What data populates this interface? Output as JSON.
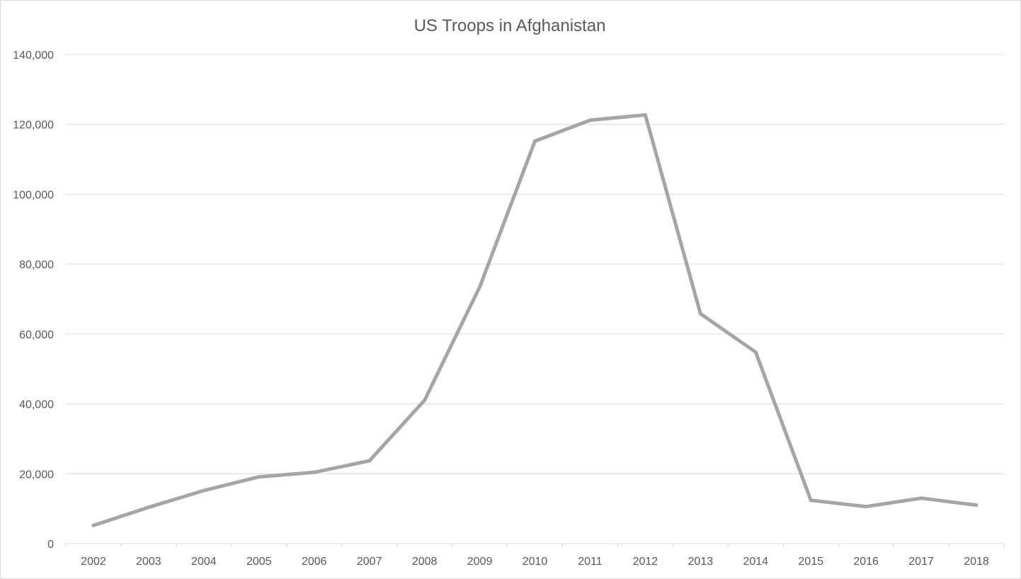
{
  "chart_data": {
    "type": "line",
    "title": "US Troops in Afghanistan",
    "xlabel": "",
    "ylabel": "",
    "categories": [
      "2002",
      "2003",
      "2004",
      "2005",
      "2006",
      "2007",
      "2008",
      "2009",
      "2010",
      "2011",
      "2012",
      "2013",
      "2014",
      "2015",
      "2016",
      "2017",
      "2018"
    ],
    "series": [
      {
        "values": [
          5200,
          10400,
          15200,
          19100,
          20400,
          23700,
          41000,
          73500,
          115200,
          121200,
          122700,
          65800,
          54800,
          12400,
          10600,
          13000,
          11000
        ],
        "color": "#a5a5a5"
      }
    ],
    "ylim": [
      0,
      140000
    ],
    "yticks": [
      0,
      20000,
      40000,
      60000,
      80000,
      100000,
      120000,
      140000
    ],
    "ytick_labels": [
      "0",
      "20,000",
      "40,000",
      "60,000",
      "80,000",
      "100,000",
      "120,000",
      "140,000"
    ],
    "grid": true,
    "legend": "none",
    "colors": {
      "line": "#a5a5a5",
      "grid": "#d9d9d9",
      "text": "#595959",
      "border": "#d9d9d9"
    }
  }
}
